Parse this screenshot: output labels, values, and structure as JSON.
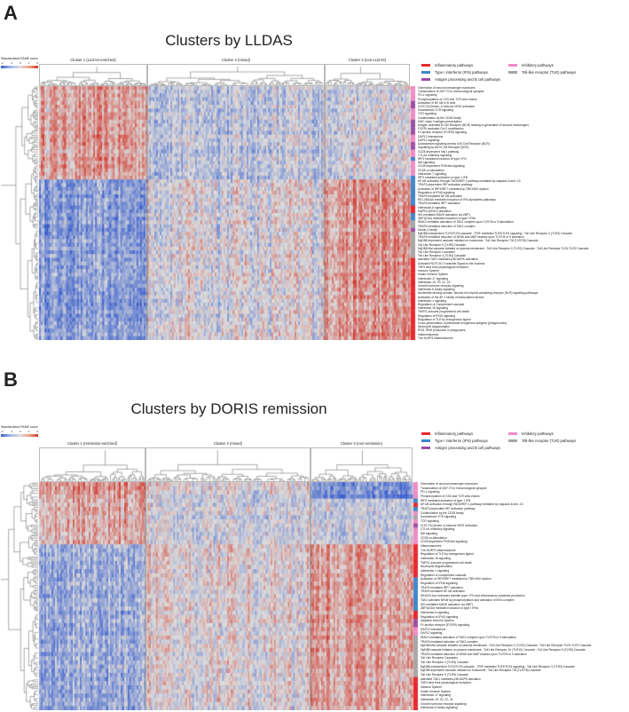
{
  "category_colors": {
    "I": "#e8282d",
    "F": "#3f86c9",
    "A": "#9a4fa5",
    "P": "#f08cc4",
    "T": "#a7a7a7"
  },
  "heat_colors": {
    "low": "#3a5fcd",
    "mid": "#dcdcdc",
    "high": "#d2372c"
  },
  "chart_data": [
    {
      "type": "heatmap",
      "panel": "A",
      "title": "Clusters by LLDAS",
      "colorbar_title": "Standardized FAME score",
      "colorbar_ticks": [
        "-2",
        "-1",
        "0",
        "1",
        "2"
      ],
      "clusters": [
        {
          "label": "Cluster 1 (LLDAS-enriched)",
          "n_columns": 60
        },
        {
          "label": "Cluster 2 (mixed)",
          "n_columns": 100
        },
        {
          "label": "Cluster 3 (non-LLDAS)",
          "n_columns": 48
        }
      ],
      "legend": [
        {
          "label": "Inflammatory pathways",
          "cat": "I"
        },
        {
          "label": "Inhibitory pathways",
          "cat": "P"
        },
        {
          "label": "Type I interferon (IFN) pathways",
          "cat": "F"
        },
        {
          "label": "Toll-like receptor (TLR) pathways",
          "cat": "T"
        },
        {
          "label": "Antigen processing and B cell pathways",
          "cat": "A"
        }
      ],
      "row_groups": [
        {
          "from": 0,
          "to": 24,
          "means": [
            0.6,
            -0.3,
            -0.1
          ]
        },
        {
          "from": 25,
          "to": 67,
          "means": [
            -0.8,
            0.0,
            0.7
          ]
        }
      ],
      "rows": [
        {
          "label": "Generation of second messenger molecules",
          "cat": "P"
        },
        {
          "label": "Translocation of ZAP-70 to Immunological synapse",
          "cat": "P"
        },
        {
          "label": "PD-1 signaling",
          "cat": "P"
        },
        {
          "label": "Phosphorylation of CD3 and TCR zeta chains",
          "cat": "P"
        },
        {
          "label": "Activation of NF-kB in B cells",
          "cat": "A"
        },
        {
          "label": "CLEC7A (Dectin-1) induces NFAT activation",
          "cat": "A"
        },
        {
          "label": "Downstream TCR signaling",
          "cat": "P"
        },
        {
          "label": "TCR signaling",
          "cat": "P"
        },
        {
          "label": "Costimulation by the CD28 family",
          "cat": "P"
        },
        {
          "label": "MHC class II antigen presentation",
          "cat": "A"
        },
        {
          "label": "Antigen activates B Cell Receptor (BCR) leading to generation of second messengers",
          "cat": "A"
        },
        {
          "label": "FCERI mediated Ca+2 mobilization",
          "cat": "A"
        },
        {
          "label": "Fc epsilon receptor (FCERI) signaling",
          "cat": "A"
        },
        {
          "label": "DAP12 interactions",
          "cat": "P"
        },
        {
          "label": "DAP12 signaling",
          "cat": "P"
        },
        {
          "label": "Downstream signaling events of B Cell Receptor (BCR)",
          "cat": "A"
        },
        {
          "label": "Signaling by the B Cell Receptor (BCR)",
          "cat": "A"
        },
        {
          "label": "CD28 dependent Vav1 pathway",
          "cat": "P"
        },
        {
          "label": "CTLA4 inhibitory signaling",
          "cat": "P"
        },
        {
          "label": "IRF3 mediated induction of type I IFN",
          "cat": "F"
        },
        {
          "label": "Nef signaling",
          "cat": "P"
        },
        {
          "label": "CD28 dependent PI3K/Akt signaling",
          "cat": "P"
        },
        {
          "label": "CD28 co-stimulation",
          "cat": "P"
        },
        {
          "label": "Interleukin-7 signaling",
          "cat": "P"
        },
        {
          "label": "IRF3 mediated activation of type 1 IFN",
          "cat": "F"
        },
        {
          "label": "NF-kB activation through FADD/RIP-1 pathway mediated by caspase-8 and -10",
          "cat": "F"
        },
        {
          "label": "TRAF3-dependent IRF activation pathway",
          "cat": "F"
        },
        {
          "label": "Activation of IRF3/IRF7 mediated by TBK1/IKK epsilon",
          "cat": "F"
        },
        {
          "label": "Regulation of IFNA signaling",
          "cat": "F"
        },
        {
          "label": "TRAF6 mediated NF-kB activation",
          "cat": "F"
        },
        {
          "label": "RIG-I/MDA5 mediated induction of IFN-alpha/beta pathways",
          "cat": "F"
        },
        {
          "label": "TRAF6 mediated IRF7 activation",
          "cat": "F"
        },
        {
          "label": "Interleukin-6 signaling",
          "cat": "I"
        },
        {
          "label": "MAPK3 (ERK1) activation",
          "cat": "I"
        },
        {
          "label": "IKK-mediated MAVS activation via ZBP1",
          "cat": "F"
        },
        {
          "label": "ZBP1(DAI) mediated induction of type I IFNs",
          "cat": "F"
        },
        {
          "label": "IRAK2 mediated activation of TAK1 complex upon TLR7/8 or 9 stimulation",
          "cat": "T"
        },
        {
          "label": "TRAF6 mediated induction of TAK1 complex",
          "cat": "T"
        },
        {
          "label": "Dectin-2 family",
          "cat": "A"
        },
        {
          "label": "MyD88-independent TLR3/TLR4 cascade ; TRIF-mediated TLR3/TLR4 signaling ; Toll Like Receptor 3 (TLR3) Cascade",
          "cat": "T"
        },
        {
          "label": "TRAF6 mediated induction of NFkB and MAP kinases upon TLR7/8 or 9 activation",
          "cat": "T"
        },
        {
          "label": "MyD88 dependent cascade initiated on endosome ; Toll Like Receptor 7/8 (TLR7/8) Cascade",
          "cat": "T"
        },
        {
          "label": "Toll Like Receptor 9 (TLR9) Cascade",
          "cat": "T"
        },
        {
          "label": "MyD88:Mal cascade initiated on plasma membrane ; Toll Like Receptor 2 (TLR2) Cascade ; Toll Like Receptor TLR1:TLR2 Cascade",
          "cat": "T"
        },
        {
          "label": "Toll Like Receptor Cascades",
          "cat": "T"
        },
        {
          "label": "Toll Like Receptor 4 (TLR4) Cascade",
          "cat": "T"
        },
        {
          "label": "activated TAK1 mediates p38 MAPK activation",
          "cat": "I"
        },
        {
          "label": "Activated NOTCH1 Transmits Signal to the Nucleus",
          "cat": "I"
        },
        {
          "label": "TNFs bind their physiological receptors",
          "cat": "I"
        },
        {
          "label": "Immune System",
          "cat": "I"
        },
        {
          "label": "Innate Immune System",
          "cat": "I"
        },
        {
          "label": "Interleukin-17 signaling",
          "cat": "I"
        },
        {
          "label": "Interleukin-19, 20, 22, 24",
          "cat": "I"
        },
        {
          "label": "Growth hormone receptor signaling",
          "cat": "I"
        },
        {
          "label": "Interleukin-6 family signaling",
          "cat": "I"
        },
        {
          "label": "Nucleotide-binding domain, leucine rich repeat containing receptor (NLR) signaling pathways",
          "cat": "I"
        },
        {
          "label": "Activation of the AP-1 family of transcription factors",
          "cat": "I"
        },
        {
          "label": "Interleukin-1 signaling",
          "cat": "I"
        },
        {
          "label": "Regulation of Complement cascade",
          "cat": "I"
        },
        {
          "label": "Interleukin-18 signaling",
          "cat": "I"
        },
        {
          "label": "TNFR1-induced programmed cell death",
          "cat": "I"
        },
        {
          "label": "Regulation of IFNG signaling",
          "cat": "I"
        },
        {
          "label": "Regulation of TLR by endogenous ligand",
          "cat": "I"
        },
        {
          "label": "Cross-presentation of particulate exogenous antigens (phagosomes)",
          "cat": "I"
        },
        {
          "label": "Neutrophil degranulation",
          "cat": "I"
        },
        {
          "label": "ROS, RNS production in phagocytes",
          "cat": "I"
        },
        {
          "label": "Inflammasomes",
          "cat": "I"
        },
        {
          "label": "The NLRP3 inflammasome",
          "cat": "I"
        }
      ]
    },
    {
      "type": "heatmap",
      "panel": "B",
      "title": "Clusters by DORIS remission",
      "colorbar_title": "Standardized FAME score",
      "colorbar_ticks": [
        "-2",
        "-1",
        "0",
        "1",
        "2"
      ],
      "clusters": [
        {
          "label": "Cluster 1 (remission-enriched)",
          "n_columns": 60
        },
        {
          "label": "Cluster 2 (mixed)",
          "n_columns": 95
        },
        {
          "label": "Cluster 3 (non-remission)",
          "n_columns": 58
        }
      ],
      "legend": [
        {
          "label": "Inflammatory pathways",
          "cat": "I"
        },
        {
          "label": "Inhibitory pathways",
          "cat": "P"
        },
        {
          "label": "Type I interferon (IFN) pathways",
          "cat": "F"
        },
        {
          "label": "Toll-like receptor (TLR) pathways",
          "cat": "T"
        },
        {
          "label": "Antigen processing and B cell pathways",
          "cat": "A"
        }
      ],
      "row_groups": [
        {
          "from": 0,
          "to": 3,
          "means": [
            0.7,
            0.0,
            -1.0
          ]
        },
        {
          "from": 4,
          "to": 14,
          "means": [
            0.5,
            -0.1,
            -0.2
          ]
        },
        {
          "from": 15,
          "to": 55,
          "means": [
            -0.6,
            0.1,
            0.6
          ]
        }
      ],
      "rows": [
        {
          "label": "Generation of second messenger molecules",
          "cat": "P"
        },
        {
          "label": "Translocation of ZAP-70 to Immunological synapse",
          "cat": "P"
        },
        {
          "label": "PD-1 signaling",
          "cat": "P"
        },
        {
          "label": "Phosphorylation of CD3 and TCR zeta chains",
          "cat": "P"
        },
        {
          "label": "IRF3 mediated activation of type 1 IFN",
          "cat": "F"
        },
        {
          "label": "NF-kB activation through FADD/RIP-1 pathway mediated by caspase-8 and -10",
          "cat": "I"
        },
        {
          "label": "TRAF3-dependent IRF activation pathway",
          "cat": "F"
        },
        {
          "label": "Costimulation by the CD28 family",
          "cat": "P"
        },
        {
          "label": "Downstream TCR signaling",
          "cat": "T"
        },
        {
          "label": "TCR signaling",
          "cat": "P"
        },
        {
          "label": "CLEC7A (Dectin-1) induces NFAT activation",
          "cat": "A"
        },
        {
          "label": "CTLA4 inhibitory signaling",
          "cat": "P"
        },
        {
          "label": "Nef signaling",
          "cat": "P"
        },
        {
          "label": "CD28 co-stimulation",
          "cat": "P"
        },
        {
          "label": "CD28 dependent PI3K/Akt signaling",
          "cat": "P"
        },
        {
          "label": "Inflammasomes",
          "cat": "I"
        },
        {
          "label": "The NLRP3 inflammasome",
          "cat": "I"
        },
        {
          "label": "Regulation of TLR by endogenous ligand",
          "cat": "I"
        },
        {
          "label": "Interleukin-18 signaling",
          "cat": "I"
        },
        {
          "label": "TNFR1-induced programmed cell death",
          "cat": "I"
        },
        {
          "label": "Neutrophil degranulation",
          "cat": "I"
        },
        {
          "label": "Interleukin-1 signaling",
          "cat": "I"
        },
        {
          "label": "Regulation of complement cascade",
          "cat": "I"
        },
        {
          "label": "Activation of IRF3/IRF7 mediated by TBK1/IKK epsilon",
          "cat": "F"
        },
        {
          "label": "Regulation of IFNA signaling",
          "cat": "F"
        },
        {
          "label": "TRAF6 mediated IRF7 activation",
          "cat": "F"
        },
        {
          "label": "TRAF6 mediated NF-kB activation",
          "cat": "F"
        },
        {
          "label": "DExD/H-box helicases activate type I IFN and inflammatory cytokines production",
          "cat": "F"
        },
        {
          "label": "TAK1 activates NFkB by phosphorylation and activation of IKKs complex",
          "cat": "F"
        },
        {
          "label": "IKK-mediated MAVS activation via ZBP1",
          "cat": "F"
        },
        {
          "label": "ZBP1(DAI) mediated induction of type I IFNs",
          "cat": "F"
        },
        {
          "label": "Interleukin-6 signaling",
          "cat": "I"
        },
        {
          "label": "Regulation of IFNG signaling",
          "cat": "I"
        },
        {
          "label": "Adaptive Immune System",
          "cat": "A"
        },
        {
          "label": "Fc epsilon receptor (FCERI) signaling",
          "cat": "A"
        },
        {
          "label": "DAP12 interactions",
          "cat": "P"
        },
        {
          "label": "DAP12 signaling",
          "cat": "P"
        },
        {
          "label": "IRAK2 mediated activation of TAK1 complex upon TLR7/8 or 9 stimulation",
          "cat": "T"
        },
        {
          "label": "TRAF6 mediated induction of TAK1 complex",
          "cat": "T"
        },
        {
          "label": "MyD88:Mal cascade initiated on plasma membrane ; Toll Like Receptor 2 (TLR2) Cascade ; Toll Like Receptor TLR1:TLR2 Cascade",
          "cat": "T"
        },
        {
          "label": "MyD88 cascade initiated on plasma membrane ; Toll Like Receptor 10 (TLR10) Cascade ; Toll Like Receptor 5 (TLR5) Cascade",
          "cat": "T"
        },
        {
          "label": "TRAF6 mediated induction of NFkB and MAP kinases upon TLR7/8 or 9 activation",
          "cat": "T"
        },
        {
          "label": "Toll Like Receptor Cascades",
          "cat": "T"
        },
        {
          "label": "Toll Like Receptor 4 (TLR4) Cascade",
          "cat": "T"
        },
        {
          "label": "MyD88-independent TLR3/TLR4 cascade ; TRIF-mediated TLR3/TLR4 signaling ; Toll Like Receptor 3 (TLR3) Cascade",
          "cat": "T"
        },
        {
          "label": "MyD88 dependent cascade initiated on endosome ; Toll Like Receptor 7/8 (TLR7/8) Cascade",
          "cat": "T"
        },
        {
          "label": "Toll Like Receptor 9 (TLR9) Cascade",
          "cat": "T"
        },
        {
          "label": "activated TAK1 mediates p38 MAPK activation",
          "cat": "I"
        },
        {
          "label": "TNFs bind their physiological receptors",
          "cat": "I"
        },
        {
          "label": "Immune System",
          "cat": "I"
        },
        {
          "label": "Innate Immune System",
          "cat": "I"
        },
        {
          "label": "Interleukin-17 signaling",
          "cat": "I"
        },
        {
          "label": "Interleukin-19, 20, 22, 24",
          "cat": "I"
        },
        {
          "label": "Growth hormone receptor signaling",
          "cat": "I"
        },
        {
          "label": "Interleukin-6 family signaling",
          "cat": "I"
        }
      ]
    }
  ]
}
